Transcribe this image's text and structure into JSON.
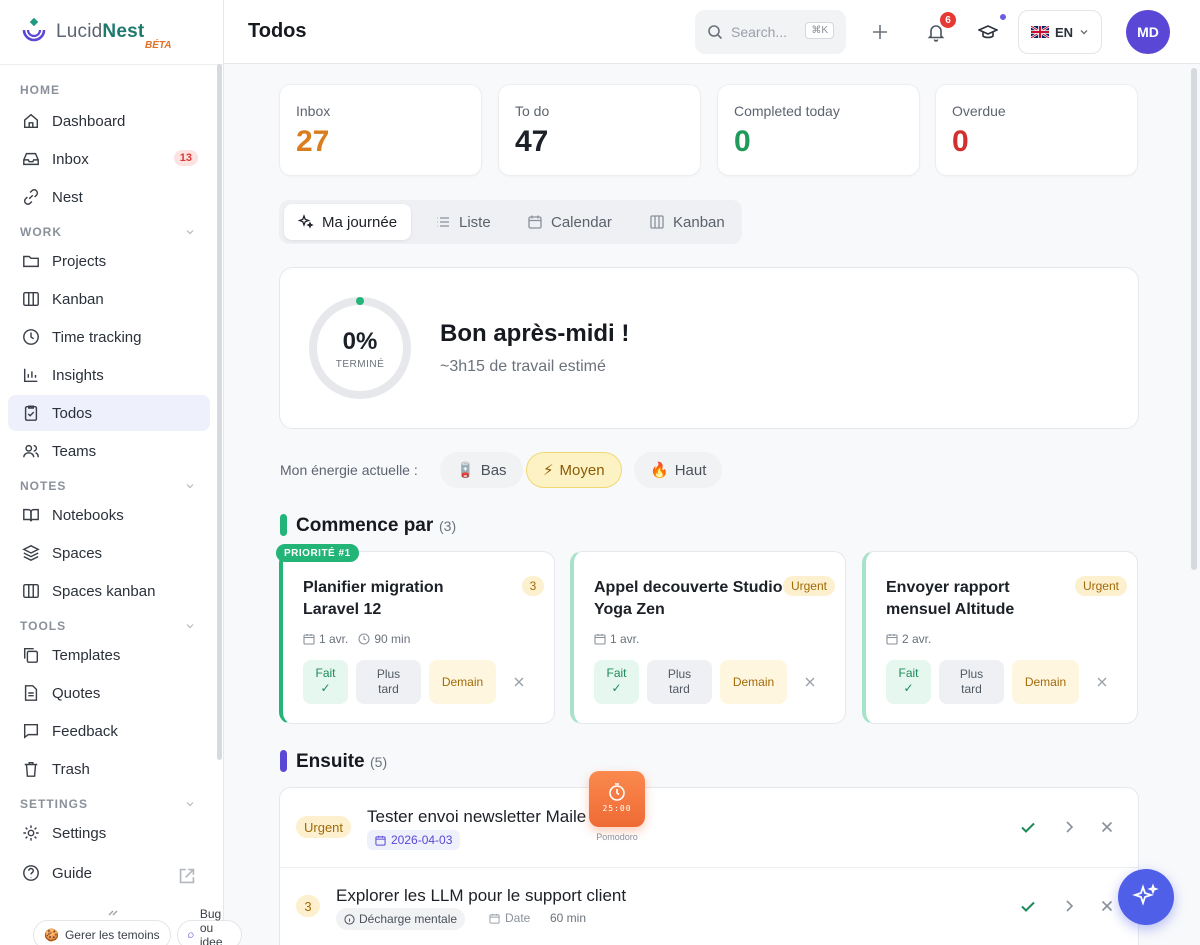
{
  "app": {
    "name_a": "Lucid",
    "name_b": "Nest",
    "beta": "BÉTA"
  },
  "sidebar": {
    "sections": {
      "home": "HOME",
      "work": "WORK",
      "notes": "NOTES",
      "tools": "TOOLS",
      "settings": "SETTINGS"
    },
    "items": {
      "dashboard": "Dashboard",
      "inbox": "Inbox",
      "inbox_count": "13",
      "nest": "Nest",
      "projects": "Projects",
      "kanban": "Kanban",
      "time_tracking": "Time tracking",
      "insights": "Insights",
      "todos": "Todos",
      "teams": "Teams",
      "notebooks": "Notebooks",
      "spaces": "Spaces",
      "spaces_kanban": "Spaces kanban",
      "templates": "Templates",
      "quotes": "Quotes",
      "feedback": "Feedback",
      "trash": "Trash",
      "settings": "Settings",
      "guide": "Guide"
    },
    "bottom": {
      "cookies": "Gerer les temoins",
      "bug": "Bug ou idee ?"
    }
  },
  "header": {
    "title": "Todos",
    "search_placeholder": "Search...",
    "search_shortcut": "⌘K",
    "notif_count": "6",
    "lang": "EN",
    "avatar": "MD"
  },
  "stats": [
    {
      "label": "Inbox",
      "value": "27",
      "color": "#d97d1e"
    },
    {
      "label": "To do",
      "value": "47",
      "color": "#1c2027"
    },
    {
      "label": "Completed today",
      "value": "0",
      "color": "#1f9a5b"
    },
    {
      "label": "Overdue",
      "value": "0",
      "color": "#d22f2f"
    }
  ],
  "tabs": {
    "day": "Ma journée",
    "list": "Liste",
    "calendar": "Calendar",
    "kanban": "Kanban"
  },
  "hero": {
    "percent": "0%",
    "percent_sub": "TERMINÉ",
    "progress": 0,
    "greeting": "Bon après-midi !",
    "estimate": "~3h15 de travail estimé"
  },
  "energy": {
    "label": "Mon énergie actuelle :",
    "low": "Bas",
    "mid": "Moyen",
    "high": "Haut",
    "low_icon": "🪫",
    "mid_icon": "⚡",
    "high_icon": "🔥"
  },
  "start": {
    "title": "Commence par",
    "count": "(3)",
    "priority_tag": "PRIORITÉ #1",
    "cards": [
      {
        "title": "Planifier migration Laravel 12",
        "tag": "3",
        "date": "1 avr.",
        "duration": "90 min"
      },
      {
        "title": "Appel decouverte Studio Yoga Zen",
        "tag": "Urgent",
        "date": "1 avr.",
        "duration": ""
      },
      {
        "title": "Envoyer rapport mensuel Altitude",
        "tag": "Urgent",
        "date": "2 avr.",
        "duration": ""
      }
    ],
    "btn_done": "Fait",
    "btn_done_check": "✓",
    "btn_later_1": "Plus",
    "btn_later_2": "tard",
    "btn_tomorrow": "Demain"
  },
  "next": {
    "title": "Ensuite",
    "count": "(5)",
    "rows": [
      {
        "tag": "Urgent",
        "title": "Tester envoi newsletter Maile",
        "date": "2026-04-03"
      },
      {
        "tag": "3",
        "title": "Explorer les LLM pour le support client",
        "chip": "Décharge mentale",
        "date_label": "Date",
        "duration": "60 min"
      }
    ]
  },
  "pomodoro": {
    "time": "25:00",
    "label": "Pomodoro"
  }
}
